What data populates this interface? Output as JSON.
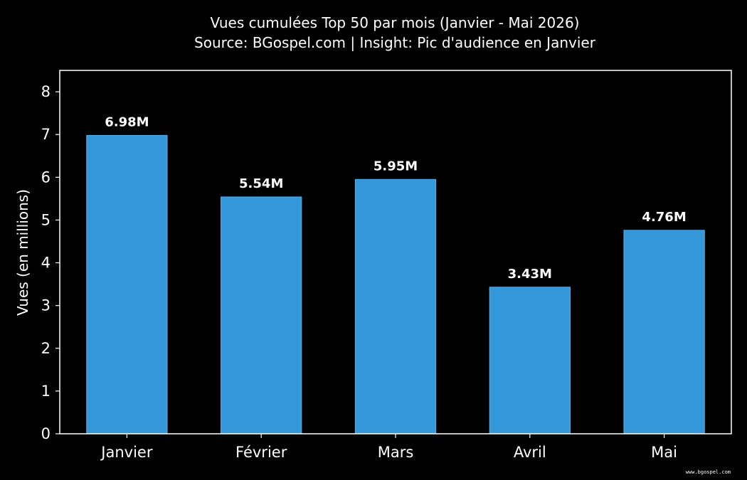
{
  "chart_data": {
    "type": "bar",
    "title": "Vues cumulées Top 50 par mois (Janvier - Mai 2026)",
    "subtitle": "Source: BGospel.com | Insight: Pic d'audience en Janvier",
    "xlabel": "",
    "ylabel": "Vues (en millions)",
    "categories": [
      "Janvier",
      "Février",
      "Mars",
      "Avril",
      "Mai"
    ],
    "values": [
      6.98,
      5.54,
      5.95,
      3.43,
      4.76
    ],
    "data_labels": [
      "6.98M",
      "5.54M",
      "5.95M",
      "3.43M",
      "4.76M"
    ],
    "ylim": [
      0,
      8.5
    ],
    "yticks": [
      "0",
      "1",
      "2",
      "3",
      "4",
      "5",
      "6",
      "7",
      "8"
    ],
    "grid": false,
    "bar_color": "#3498db",
    "background_color": "#000000",
    "text_color": "#ffffff"
  },
  "watermark": "www.bgospel.com"
}
